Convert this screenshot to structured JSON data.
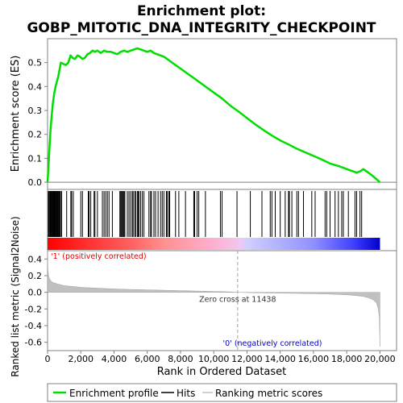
{
  "chart_data": {
    "type": "line",
    "title_line1": "Enrichment plot:",
    "title_line2": "GOBP_MITOTIC_DNA_INTEGRITY_CHECKPOINT",
    "es_panel": {
      "ylabel": "Enrichment score (ES)",
      "ylim": [
        -0.03,
        0.6
      ],
      "yticks": [
        "0.0",
        "0.1",
        "0.2",
        "0.3",
        "0.4",
        "0.5"
      ],
      "ytick_values": [
        0.0,
        0.1,
        0.2,
        0.3,
        0.4,
        0.5
      ],
      "line_color": "#00dd00",
      "series": [
        {
          "x": [
            0,
            60,
            120,
            180,
            250,
            320,
            400,
            480,
            560,
            640,
            720,
            800,
            950,
            1100,
            1250,
            1380,
            1500,
            1650,
            1800,
            1950,
            2100,
            2250,
            2400,
            2550,
            2700,
            2850,
            3000,
            3200,
            3400,
            3600,
            3800,
            4000,
            4200,
            4400,
            4600,
            4800,
            5000,
            5200,
            5400,
            5600,
            5800,
            6000,
            6200,
            6400,
            6600,
            6800,
            7000,
            7200,
            7400,
            7700,
            8000,
            8500,
            9000,
            9500,
            10000,
            10500,
            11000,
            11500,
            12000,
            12500,
            13000,
            13500,
            14000,
            14500,
            15000,
            15500,
            16000,
            16500,
            17000,
            17500,
            17900,
            18200,
            18400,
            18600,
            18800,
            19000,
            19200,
            19500,
            19800,
            20000
          ],
          "y": [
            0.0,
            0.07,
            0.15,
            0.22,
            0.28,
            0.33,
            0.37,
            0.4,
            0.42,
            0.44,
            0.47,
            0.5,
            0.495,
            0.49,
            0.5,
            0.53,
            0.52,
            0.515,
            0.53,
            0.525,
            0.515,
            0.52,
            0.535,
            0.54,
            0.55,
            0.545,
            0.55,
            0.54,
            0.55,
            0.545,
            0.545,
            0.54,
            0.535,
            0.545,
            0.55,
            0.545,
            0.55,
            0.555,
            0.56,
            0.555,
            0.55,
            0.545,
            0.55,
            0.54,
            0.535,
            0.53,
            0.525,
            0.515,
            0.505,
            0.49,
            0.475,
            0.45,
            0.425,
            0.4,
            0.375,
            0.35,
            0.32,
            0.295,
            0.268,
            0.242,
            0.218,
            0.195,
            0.175,
            0.158,
            0.14,
            0.125,
            0.11,
            0.095,
            0.078,
            0.068,
            0.058,
            0.05,
            0.045,
            0.04,
            0.045,
            0.055,
            0.045,
            0.03,
            0.012,
            0.0
          ]
        }
      ]
    },
    "hits": [
      50,
      90,
      140,
      170,
      200,
      230,
      260,
      300,
      330,
      360,
      390,
      420,
      460,
      500,
      540,
      580,
      620,
      660,
      700,
      740,
      780,
      850,
      1150,
      1400,
      1450,
      1550,
      2000,
      2100,
      2450,
      2500,
      2600,
      2800,
      2850,
      3000,
      3300,
      3400,
      3500,
      3600,
      3700,
      3900,
      4350,
      4400,
      4450,
      4500,
      4550,
      4600,
      4650,
      4800,
      4900,
      5000,
      5100,
      5150,
      5250,
      5300,
      5400,
      5450,
      5500,
      5600,
      5700,
      5800,
      6100,
      6200,
      6250,
      6400,
      6500,
      6650,
      6800,
      6900,
      7000,
      7150,
      7200,
      7300,
      7350,
      7700,
      7900,
      8300,
      8800,
      8850,
      9000,
      9100,
      9500,
      10400,
      10500,
      11400,
      12200,
      12900,
      13400,
      13500,
      13700,
      14000,
      14300,
      14500,
      14550,
      14700,
      15000,
      15100,
      15400,
      15900,
      16100,
      16700,
      16800,
      17000,
      17300,
      17500,
      17700,
      17800,
      18100,
      18500,
      18600,
      18800,
      18900
    ],
    "ranked_panel": {
      "ylabel": "Ranked list metric (Signal2Noise)",
      "ylim": [
        -0.7,
        0.5
      ],
      "yticks": [
        "0.4",
        "0.2",
        "0.0",
        "-0.2",
        "-0.4",
        "-0.6"
      ],
      "ytick_values": [
        0.4,
        0.2,
        0.0,
        -0.2,
        -0.4,
        -0.6
      ],
      "xlabel": "Rank in Ordered Dataset",
      "xlim": [
        0,
        21000
      ],
      "xticks": [
        "0",
        "2,000",
        "4,000",
        "6,000",
        "8,000",
        "10,000",
        "12,000",
        "14,000",
        "16,000",
        "18,000",
        "20,000"
      ],
      "xtick_values": [
        0,
        2000,
        4000,
        6000,
        8000,
        10000,
        12000,
        14000,
        16000,
        18000,
        20000
      ],
      "zero_cross_label": "Zero cross at 11438",
      "zero_cross_x": 11438,
      "positive_label": "'1' (positively correlated)",
      "negative_label": "'0' (negatively correlated)",
      "metric_x": [
        0,
        20,
        60,
        120,
        200,
        300,
        450,
        600,
        800,
        1000,
        1500,
        2000,
        3000,
        4000,
        5000,
        6000,
        7000,
        8000,
        9000,
        10000,
        11000,
        11438,
        12000,
        13000,
        14000,
        15000,
        16000,
        17000,
        18000,
        18500,
        19000,
        19300,
        19600,
        19800,
        19900,
        19960,
        20000
      ],
      "metric_y": [
        0.5,
        0.28,
        0.2,
        0.16,
        0.14,
        0.12,
        0.11,
        0.1,
        0.09,
        0.08,
        0.07,
        0.06,
        0.05,
        0.04,
        0.035,
        0.03,
        0.025,
        0.02,
        0.015,
        0.01,
        0.005,
        0.0,
        -0.003,
        -0.007,
        -0.01,
        -0.013,
        -0.017,
        -0.022,
        -0.03,
        -0.038,
        -0.05,
        -0.065,
        -0.09,
        -0.13,
        -0.2,
        -0.3,
        -0.65
      ]
    },
    "legend": {
      "entries": [
        "Enrichment profile",
        "Hits",
        "Ranking metric scores"
      ],
      "colors": [
        "#00dd00",
        "#000000",
        "#c0c0c0"
      ]
    }
  }
}
